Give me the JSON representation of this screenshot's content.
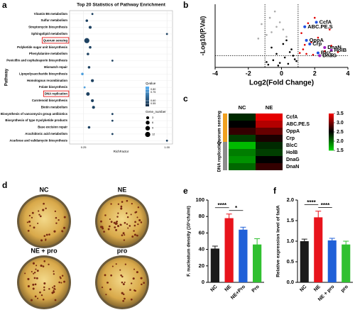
{
  "chart_data": [
    {
      "type": "bubble",
      "panel": "a",
      "title": "Top 20 Statistics of Pathway Enrichment",
      "xlabel": "RichFactor",
      "ylabel": "Pathway",
      "categories": [
        "Vitamin B6 metabolism",
        "Sulfur metabolism",
        "Streptomycin biosynthesis",
        "Sphingolipid metabolism",
        "Quorum sensing",
        "Polyketide sugar unit biosynthesis",
        "Phenylalanine metabolism",
        "Penicillin and cephalosporin biosynthesis",
        "Mismatch repair",
        "Lipopolysaccharide biosynthesis",
        "Homologous recombination",
        "Folate biosynthesis",
        "DNA replication",
        "Carotenoid biosynthesis",
        "Biotin metabolism",
        "Biosynthesis of vancomycin group antibiotics",
        "Biosynthesis of type II polyketide products",
        "Base excision repair",
        "Arachidonic acid metabolism",
        "Acarbose and validamycin biosynthesis"
      ],
      "values": [
        0.33,
        0.28,
        0.31,
        1.0,
        0.28,
        0.31,
        0.29,
        0.51,
        0.3,
        0.24,
        0.33,
        0.26,
        0.29,
        0.33,
        0.34,
        0.51,
        0.51,
        0.3,
        0.51,
        1.0
      ],
      "sizes": [
        1,
        2,
        3,
        1,
        12,
        2,
        2,
        1,
        2,
        2,
        3,
        1,
        5,
        3,
        3,
        1,
        1,
        2,
        1,
        1
      ],
      "qvalues": [
        0.56,
        0.56,
        0.56,
        0.56,
        0.56,
        0.56,
        0.56,
        0.56,
        0.56,
        0.8,
        0.56,
        0.8,
        0.56,
        0.56,
        0.56,
        0.56,
        0.56,
        0.56,
        0.56,
        0.56
      ],
      "boxed": [
        4,
        12
      ],
      "xlim": [
        0.125,
        1.05
      ],
      "xticks": [
        {
          "value": 0.25,
          "label": "0.25"
        },
        {
          "value": 1.0,
          "label": "1.00"
        }
      ],
      "qvalue_title": "Qvalue",
      "qlim": [
        0.5,
        0.85
      ],
      "qcolors": [
        "#132b43",
        "#56b1f7"
      ],
      "qvalue_ticks": [
        {
          "value": 0.8,
          "label": "0.80"
        },
        0.75,
        {
          "value": 0.6,
          "label": "0.60"
        },
        0.55
      ],
      "size_title": "Gene_number",
      "size_ticks": [
        3,
        6,
        9,
        12
      ]
    },
    {
      "type": "volcano",
      "panel": "b",
      "xlabel": "Log2(Fold Change)",
      "ylabel": "-Log10(P.Val)",
      "xlim": [
        -4,
        4
      ],
      "xticks": [
        -4,
        -2,
        0,
        2,
        4
      ],
      "ylim": [
        0,
        7
      ],
      "thresholds_x": [
        -1,
        1
      ],
      "threshold_y": 1.3,
      "series": [
        {
          "color": "#000000",
          "x": [
            -0.8,
            -0.5,
            -0.3,
            -0.1,
            0.2,
            0.4,
            0.6,
            0.8,
            -0.6,
            0.1,
            0.5,
            -0.2,
            0.3,
            0.7,
            -0.9,
            0.9
          ],
          "values": [
            0.3,
            0.8,
            1.5,
            0.5,
            1.1,
            0.4,
            2.0,
            0.9,
            2.2,
            2.6,
            1.7,
            0.2,
            3.0,
            1.3,
            0.6,
            0.7
          ]
        },
        {
          "color": "#aaaaaa",
          "x": [
            -1.2,
            -0.7,
            -0.4,
            -0.1,
            0.1,
            -0.9,
            -0.3,
            0.3,
            -1.4,
            -0.6
          ],
          "values": [
            4.8,
            5.5,
            6.2,
            5.0,
            4.2,
            3.6,
            4.5,
            3.4,
            3.2,
            3.9
          ]
        },
        {
          "color": "#e00000",
          "x": [
            1.1,
            1.3,
            1.5,
            1.8,
            2.2,
            2.6,
            3.0,
            1.2,
            1.6,
            2.0,
            1.4,
            2.9,
            3.4,
            1.9
          ],
          "values": [
            1.6,
            2.0,
            1.5,
            2.8,
            3.3,
            1.8,
            2.4,
            3.8,
            4.9,
            5.5,
            2.5,
            4.2,
            1.7,
            1.4
          ]
        }
      ],
      "genes": [
        "CcfA",
        "ABC.PE.S",
        "OppA",
        "Crp",
        "DnaN",
        "HolB",
        "BlcC",
        "DnaG"
      ],
      "gene_x": [
        2.1,
        1.4,
        1.5,
        1.7,
        2.6,
        3.0,
        2.2,
        2.3
      ],
      "gene_y": [
        5.0,
        4.5,
        3.0,
        2.6,
        2.2,
        1.9,
        1.6,
        1.3
      ],
      "gene_colors": [
        "#2050e0",
        "#2050e0",
        "#2050e0",
        "#2050e0",
        "#a020c0",
        "#a020c0",
        "#2050e0",
        "#a020c0"
      ]
    },
    {
      "type": "heatmap",
      "panel": "c",
      "columns": [
        "NC",
        "NE"
      ],
      "rows": [
        "CcfA",
        "ABC.PE.S",
        "OppA",
        "Crp",
        "BlcC",
        "HolB",
        "DnaG",
        "DnaN"
      ],
      "values": [
        [
          2.3,
          3.4
        ],
        [
          2.5,
          3.2
        ],
        [
          2.7,
          2.9
        ],
        [
          2.2,
          2.6
        ],
        [
          1.6,
          2.3
        ],
        [
          1.9,
          2.2
        ],
        [
          1.8,
          2.5
        ],
        [
          2.0,
          2.7
        ]
      ],
      "groups": [
        {
          "name": "Quorum sensing",
          "count": 4,
          "color": "#f0a020"
        },
        {
          "name": "DNA replication",
          "count": 4,
          "color": "#8c8c8c"
        }
      ],
      "zlim": [
        1.5,
        3.5
      ],
      "zticks": [
        1.5,
        {
          "value": 2,
          "label": "2.0"
        },
        2.5,
        {
          "value": 3,
          "label": "3.0"
        },
        3.5
      ],
      "zcolors": [
        "#00d000",
        "#000000",
        "#ff0000"
      ]
    },
    {
      "type": "bar",
      "panel": "e",
      "ylabel": "F. nucleatum density (10⁵cfu/ml)",
      "categories": [
        "NC",
        "NE",
        "NE+Pro",
        "Pro"
      ],
      "values": [
        41,
        78,
        64,
        46
      ],
      "errors": [
        3,
        5,
        3,
        7
      ],
      "colors": [
        "#1a1a1a",
        "#e8141c",
        "#2060d8",
        "#30c030"
      ],
      "ylim": [
        0,
        100
      ],
      "yticks": [
        0,
        20,
        40,
        60,
        80,
        100
      ],
      "significance": [
        {
          "from": 0,
          "to": 1,
          "label": "****"
        },
        {
          "from": 1,
          "to": 2,
          "label": "*"
        }
      ]
    },
    {
      "type": "bar",
      "panel": "f",
      "ylabel": "Relative expression level of fadA",
      "categories": [
        "NC",
        "NE",
        "NE + pro",
        "pro"
      ],
      "values": [
        1.0,
        1.58,
        1.02,
        0.92
      ],
      "errors": [
        0.05,
        0.15,
        0.05,
        0.08
      ],
      "colors": [
        "#1a1a1a",
        "#e8141c",
        "#2060d8",
        "#30c030"
      ],
      "ylim": [
        0,
        2
      ],
      "yticks": [
        {
          "value": 0,
          "label": "0.0"
        },
        0.5,
        {
          "value": 1,
          "label": "1.0"
        },
        1.5,
        {
          "value": 2,
          "label": "2.0"
        }
      ],
      "significance": [
        {
          "from": 0,
          "to": 1,
          "label": "****"
        },
        {
          "from": 1,
          "to": 2,
          "label": "****"
        }
      ]
    }
  ],
  "panel_d": {
    "panel": "d",
    "labels": [
      "NC",
      "NE",
      "NE + pro",
      "pro"
    ]
  }
}
